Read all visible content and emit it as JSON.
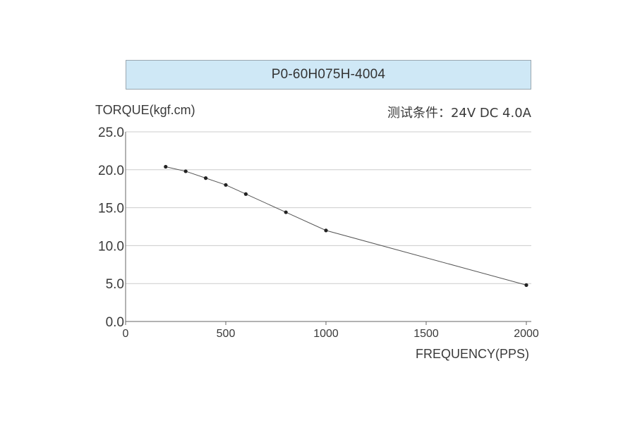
{
  "chart_data": {
    "type": "line",
    "title": "P0-60H075H-4004",
    "ylabel": "TORQUE(kgf.cm)",
    "xlabel": "FREQUENCY(PPS)",
    "annotation": "测试条件：24V DC  4.0A",
    "xlim": [
      0,
      2000
    ],
    "ylim": [
      0,
      25
    ],
    "xticks": [
      "0",
      "500",
      "1000",
      "1500",
      "2000"
    ],
    "xtick_values": [
      0,
      500,
      1000,
      1500,
      2000
    ],
    "yticks": [
      "0.0",
      "5.0",
      "10.0",
      "15.0",
      "20.0",
      "25.0"
    ],
    "ytick_values": [
      0,
      5,
      10,
      15,
      20,
      25
    ],
    "grid": "horizontal",
    "series": [
      {
        "x": [
          200,
          300,
          400,
          500,
          600,
          800,
          1000,
          2000
        ],
        "y": [
          20.4,
          19.8,
          18.9,
          18.0,
          16.8,
          14.4,
          12.0,
          4.8
        ]
      }
    ],
    "colors": {
      "line": "#555555",
      "marker": "#222222",
      "grid": "#cccccc",
      "title_bg": "#cfe8f6"
    }
  }
}
